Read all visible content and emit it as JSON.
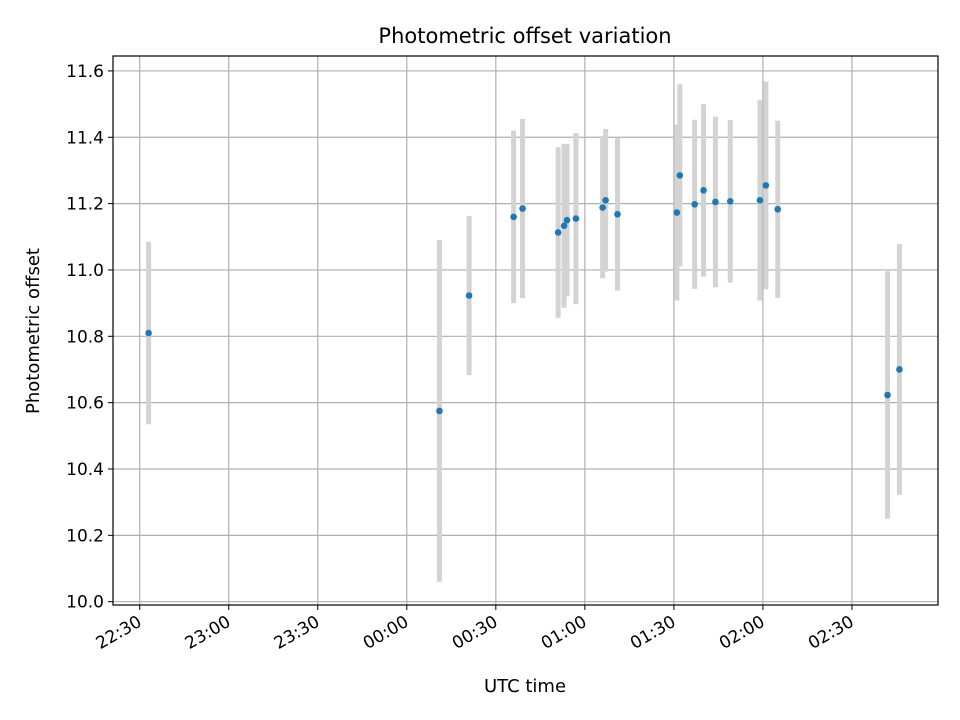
{
  "chart_data": {
    "type": "scatter",
    "title": "Photometric offset variation",
    "xlabel": "UTC time",
    "ylabel": "Photometric offset",
    "x_axis_type": "time",
    "xlim": [
      "22:21",
      "02:59"
    ],
    "ylim": [
      9.99,
      11.645
    ],
    "grid": true,
    "x_ticks": [
      "22:30",
      "23:00",
      "23:30",
      "00:00",
      "00:30",
      "01:00",
      "01:30",
      "02:00",
      "02:30"
    ],
    "y_ticks": [
      "10.0",
      "10.2",
      "10.4",
      "10.6",
      "10.8",
      "11.0",
      "11.2",
      "11.4",
      "11.6"
    ],
    "point_color": "#1f77b4",
    "errorbar_color": "#d3d3d3",
    "points": [
      {
        "x": "22:33",
        "y": 10.81,
        "yerr": 0.275
      },
      {
        "x": "00:11",
        "y": 10.575,
        "yerr": 0.515
      },
      {
        "x": "00:21",
        "y": 10.923,
        "yerr": 0.24
      },
      {
        "x": "00:36",
        "y": 11.16,
        "yerr": 0.26
      },
      {
        "x": "00:39",
        "y": 11.185,
        "yerr": 0.27
      },
      {
        "x": "00:51",
        "y": 11.113,
        "yerr": 0.257
      },
      {
        "x": "00:53",
        "y": 11.133,
        "yerr": 0.247
      },
      {
        "x": "00:54",
        "y": 11.15,
        "yerr": 0.23
      },
      {
        "x": "00:57",
        "y": 11.155,
        "yerr": 0.258
      },
      {
        "x": "01:06",
        "y": 11.188,
        "yerr": 0.213
      },
      {
        "x": "01:07",
        "y": 11.21,
        "yerr": 0.215
      },
      {
        "x": "01:11",
        "y": 11.168,
        "yerr": 0.23
      },
      {
        "x": "01:31",
        "y": 11.173,
        "yerr": 0.265
      },
      {
        "x": "01:32",
        "y": 11.285,
        "yerr": 0.275
      },
      {
        "x": "01:37",
        "y": 11.198,
        "yerr": 0.255
      },
      {
        "x": "01:40",
        "y": 11.24,
        "yerr": 0.26
      },
      {
        "x": "01:44",
        "y": 11.205,
        "yerr": 0.257
      },
      {
        "x": "01:49",
        "y": 11.207,
        "yerr": 0.245
      },
      {
        "x": "01:59",
        "y": 11.21,
        "yerr": 0.302
      },
      {
        "x": "02:01",
        "y": 11.255,
        "yerr": 0.313
      },
      {
        "x": "02:05",
        "y": 11.183,
        "yerr": 0.267
      },
      {
        "x": "02:42",
        "y": 10.623,
        "yerr": 0.373
      },
      {
        "x": "02:46",
        "y": 10.7,
        "yerr": 0.378
      }
    ]
  }
}
